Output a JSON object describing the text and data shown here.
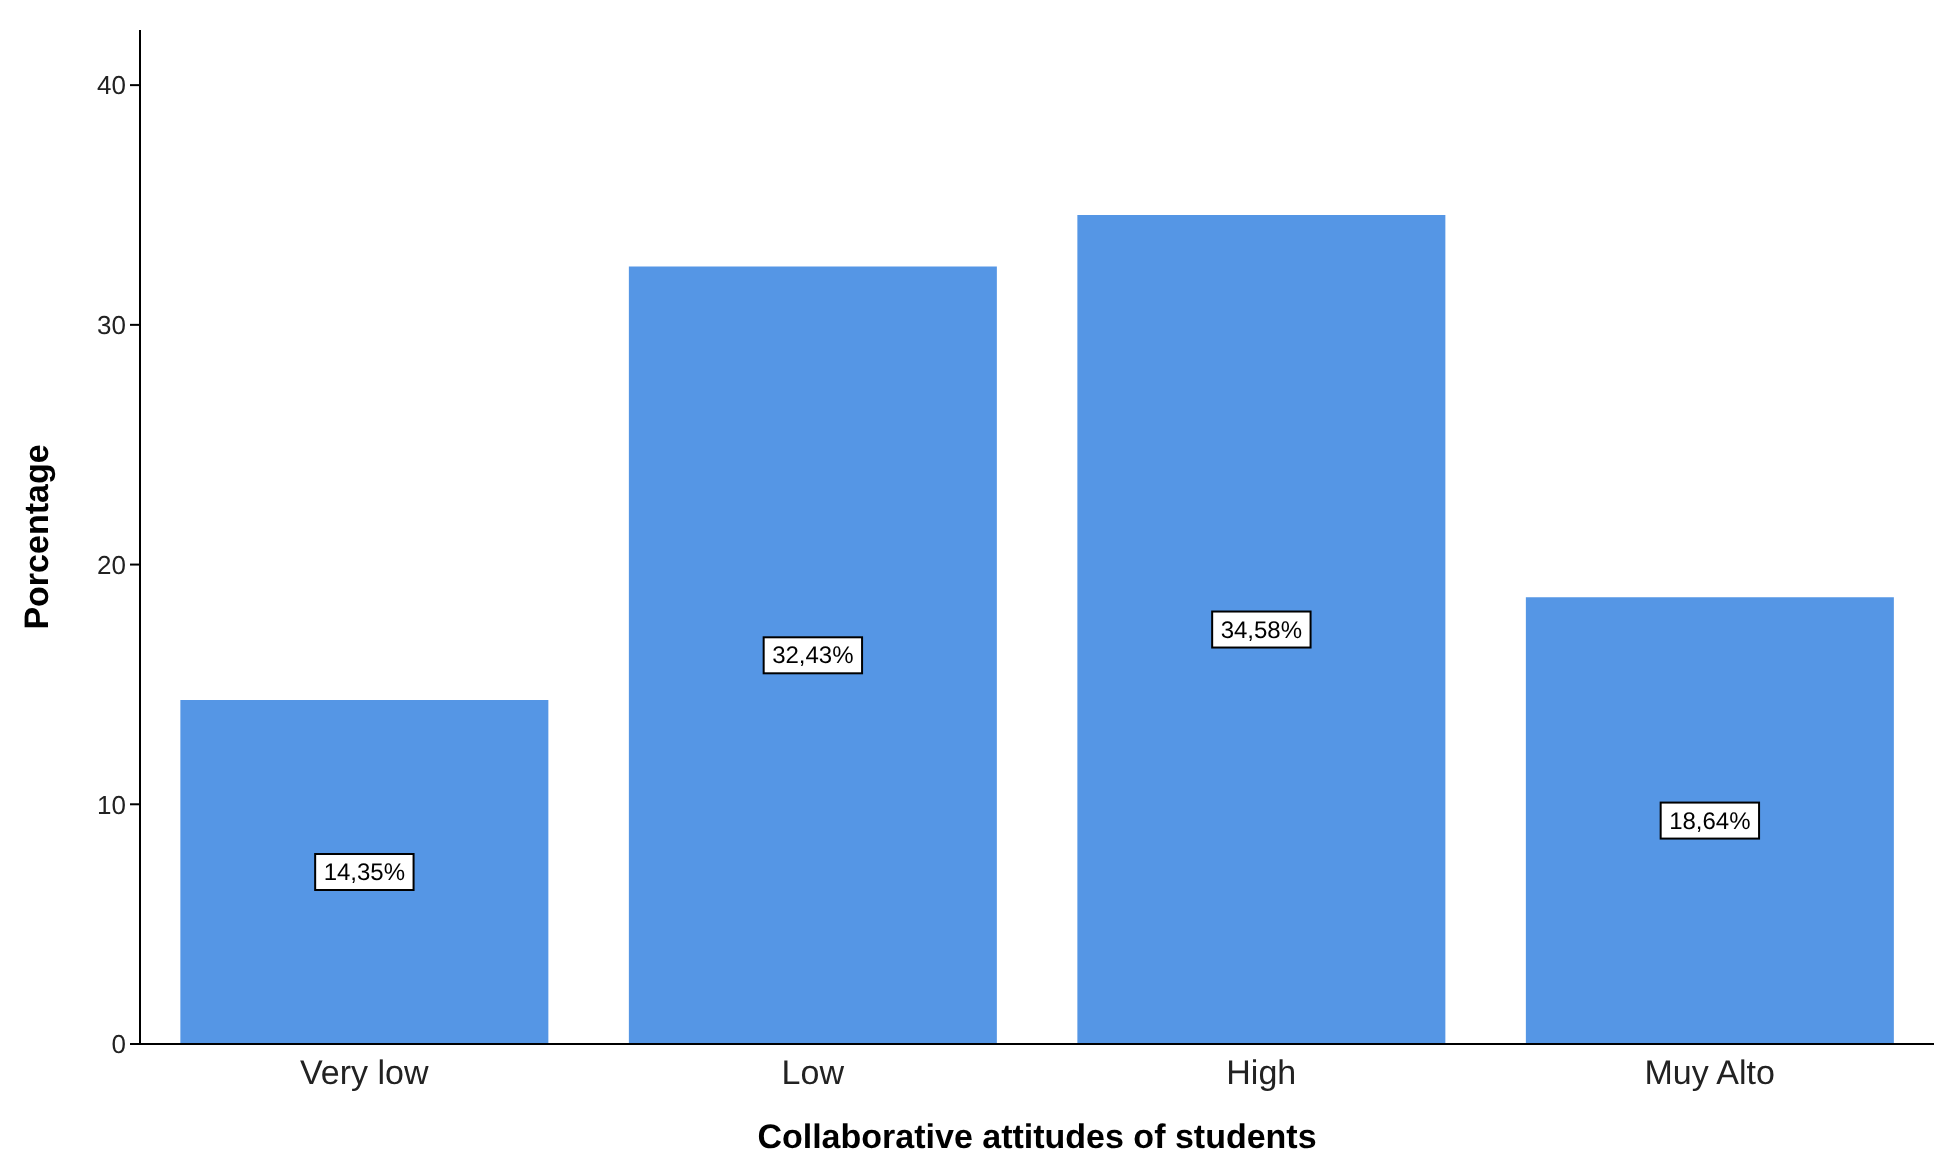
{
  "chart_data": {
    "type": "bar",
    "xlabel": "Collaborative attitudes of students",
    "ylabel": "Porcentage",
    "categories": [
      "Very low",
      "Low",
      "High",
      "Muy Alto"
    ],
    "values": [
      14.35,
      32.43,
      34.58,
      18.64
    ],
    "value_labels": [
      "14,35%",
      "32,43%",
      "34,58%",
      "18,64%"
    ],
    "color": "#5596e5",
    "ylim": [
      0,
      42.3
    ],
    "yticks": [
      0,
      10,
      20,
      30,
      40
    ]
  }
}
